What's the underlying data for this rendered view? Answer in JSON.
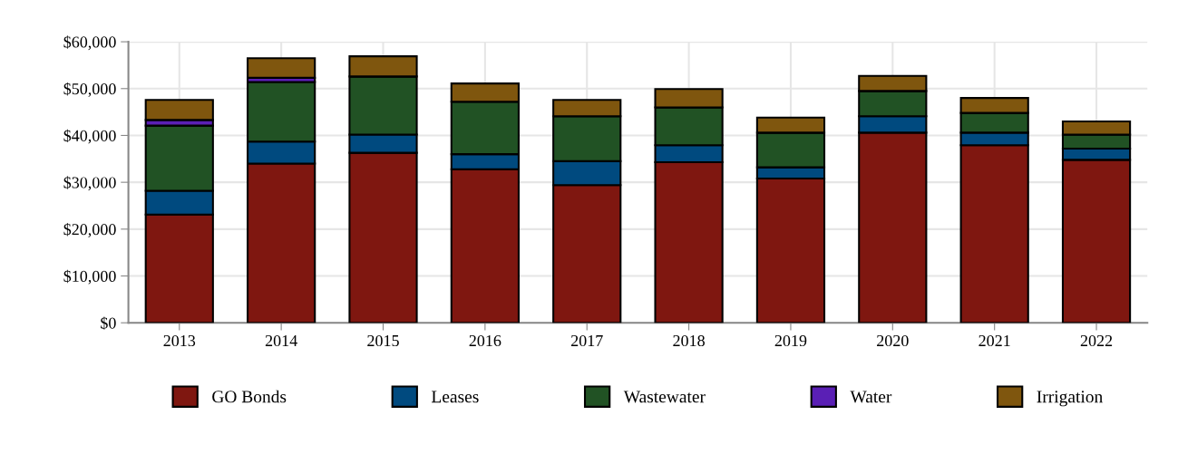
{
  "chart_data": {
    "type": "bar",
    "stacked": true,
    "categories": [
      "2013",
      "2014",
      "2015",
      "2016",
      "2017",
      "2018",
      "2019",
      "2020",
      "2021",
      "2022"
    ],
    "series": [
      {
        "name": "GO Bonds",
        "color": "#7f1710",
        "values": [
          23100,
          34000,
          36300,
          32800,
          29400,
          34300,
          30800,
          40600,
          37900,
          34800
        ]
      },
      {
        "name": "Leases",
        "color": "#004a7f",
        "values": [
          5100,
          4700,
          3900,
          3200,
          5100,
          3600,
          2400,
          3500,
          2700,
          2400
        ]
      },
      {
        "name": "Wastewater",
        "color": "#215224",
        "values": [
          13900,
          12700,
          12400,
          11200,
          9600,
          8100,
          7400,
          5400,
          4200,
          3000
        ]
      },
      {
        "name": "Water",
        "color": "#5a1fb5",
        "values": [
          1200,
          900,
          0,
          0,
          0,
          0,
          0,
          0,
          0,
          0
        ]
      },
      {
        "name": "Irrigation",
        "color": "#7f560e",
        "values": [
          4300,
          4200,
          4300,
          3900,
          3500,
          3900,
          3200,
          3200,
          3200,
          2800
        ]
      }
    ],
    "ylim": [
      0,
      60000
    ],
    "yticks": [
      {
        "value": 0,
        "label": "$0"
      },
      {
        "value": 10000,
        "label": "$10,000"
      },
      {
        "value": 20000,
        "label": "$20,000"
      },
      {
        "value": 30000,
        "label": "$30,000"
      },
      {
        "value": 40000,
        "label": "$40,000"
      },
      {
        "value": 50000,
        "label": "$50,000"
      },
      {
        "value": 60000,
        "label": "$60,000"
      }
    ],
    "grid": true,
    "legend": "bottom"
  }
}
